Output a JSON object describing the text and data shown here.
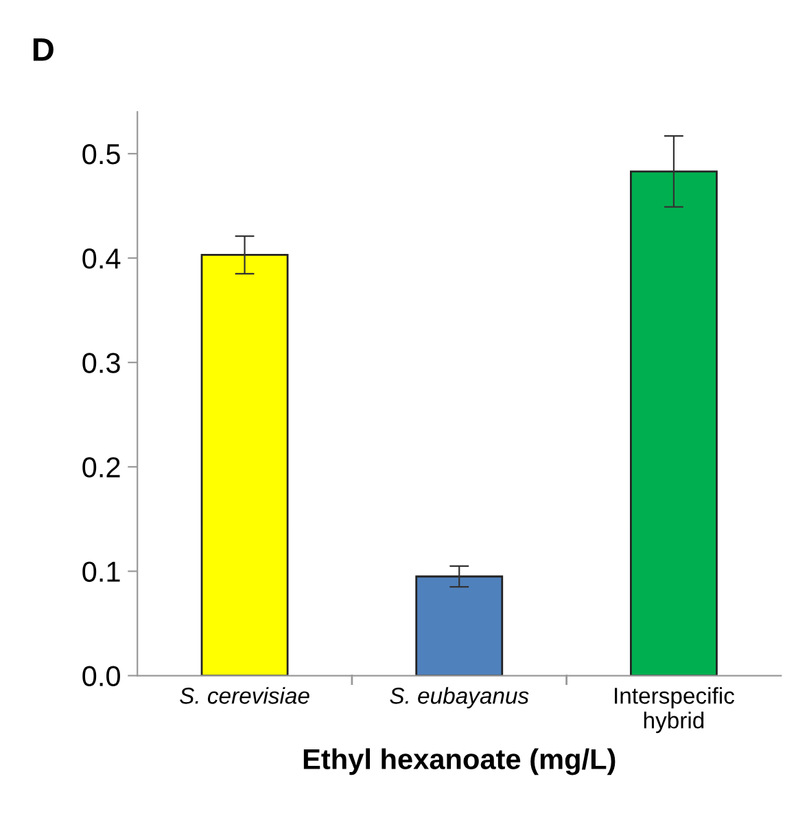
{
  "chart_data": {
    "type": "bar",
    "title": "D",
    "xlabel": "Ethyl hexanoate (mg/L)",
    "categories": [
      "S. cerevisiae",
      "S. eubayanus",
      "Interspecific\nhybrid"
    ],
    "values": [
      0.403,
      0.095,
      0.483
    ],
    "errors": [
      0.018,
      0.01,
      0.034
    ],
    "colors": [
      "#ffff00",
      "#4f81bd",
      "#00b050"
    ],
    "ylim": [
      0,
      0.54
    ],
    "yticks": [
      {
        "value": 0,
        "label": "0.0"
      },
      0.1,
      0.2,
      0.3,
      0.4,
      0.5
    ],
    "grid": false
  }
}
